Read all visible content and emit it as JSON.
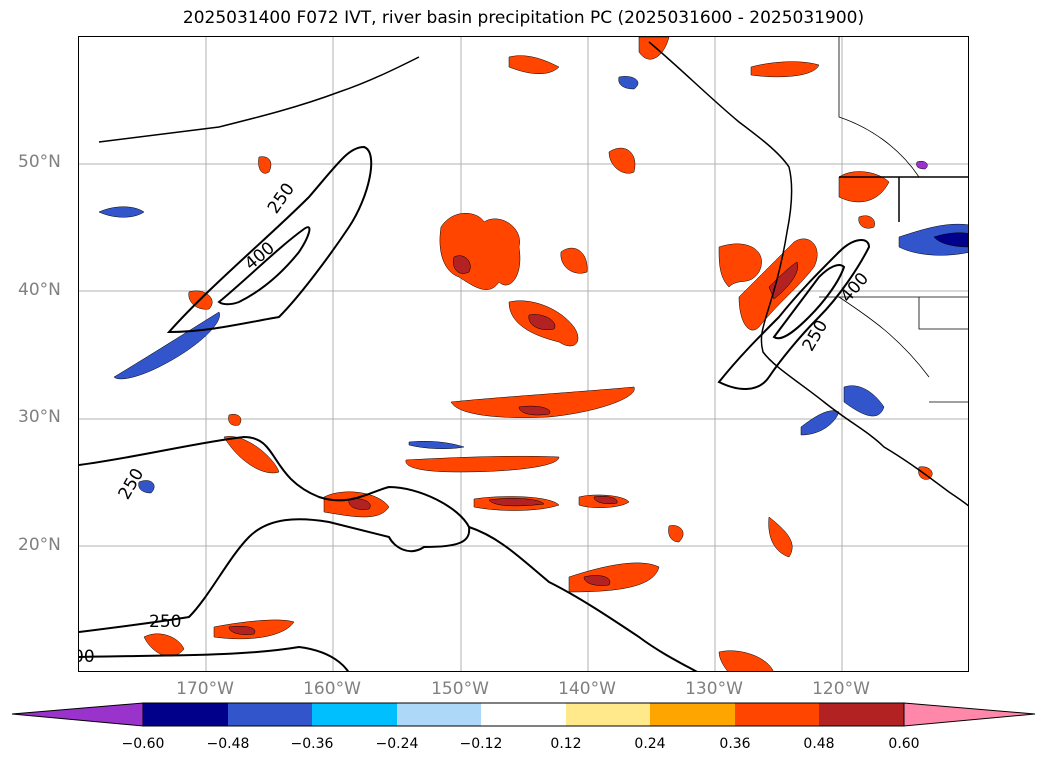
{
  "title": "2025031400 F072 IVT, river basin precipitation PC (2025031600 - 2025031900)",
  "lat_labels": [
    "50°N",
    "40°N",
    "30°N",
    "20°N"
  ],
  "lon_labels": [
    "170°W",
    "160°W",
    "150°W",
    "140°W",
    "130°W",
    "120°W"
  ],
  "contour_labels": [
    "250",
    "400",
    "250",
    "400",
    "250",
    "250",
    "00"
  ],
  "colorbar": {
    "ticks": [
      "−0.60",
      "−0.48",
      "−0.36",
      "−0.24",
      "−0.12",
      "0.12",
      "0.24",
      "0.36",
      "0.48",
      "0.60"
    ],
    "colors": [
      "#9933cc",
      "#00008b",
      "#3355cc",
      "#00bfff",
      "#add8f7",
      "#ffffff",
      "#ffe98a",
      "#ffa500",
      "#ff4500",
      "#b22222",
      "#ff88aa"
    ]
  },
  "map_extent": {
    "lon": [
      -180,
      -110
    ],
    "lat": [
      10,
      60
    ]
  },
  "gridlines": true
}
